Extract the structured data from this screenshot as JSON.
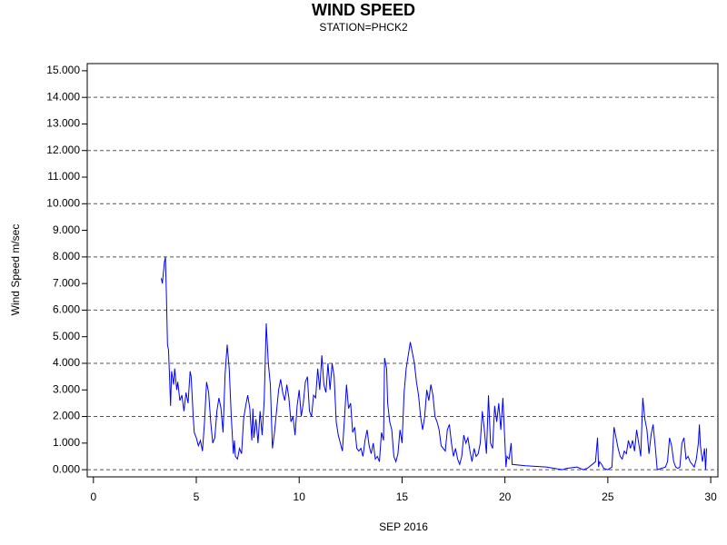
{
  "chart_data": {
    "type": "line",
    "title": "WIND SPEED",
    "subtitle": "STATION=PHCK2",
    "x_label": "SEP 2016",
    "y_label": "Wind Speed m/sec",
    "xlim": [
      -0.3,
      30.35
    ],
    "ylim": [
      -0.27,
      15.27
    ],
    "xticks": [
      0,
      5,
      10,
      15,
      20,
      25,
      30
    ],
    "yticks": [
      {
        "value": 0,
        "label": "0.000"
      },
      {
        "value": 1,
        "label": "1.000"
      },
      {
        "value": 2,
        "label": "2.000"
      },
      {
        "value": 3,
        "label": "3.000"
      },
      {
        "value": 4,
        "label": "4.000"
      },
      {
        "value": 5,
        "label": "5.000"
      },
      {
        "value": 6,
        "label": "6.000"
      },
      {
        "value": 7,
        "label": "7.000"
      },
      {
        "value": 8,
        "label": "8.000"
      },
      {
        "value": 9,
        "label": "9.000"
      },
      {
        "value": 10,
        "label": "10.000"
      },
      {
        "value": 11,
        "label": "11.000"
      },
      {
        "value": 12,
        "label": "12.000"
      },
      {
        "value": 13,
        "label": "13.000"
      },
      {
        "value": 14,
        "label": "14.000"
      },
      {
        "value": 15,
        "label": "15.000"
      }
    ],
    "ygrid": [
      0,
      2,
      4,
      6,
      8,
      10,
      12,
      14
    ],
    "x": [
      3.3,
      3.35,
      3.45,
      3.5,
      3.55,
      3.6,
      3.65,
      3.7,
      3.75,
      3.8,
      3.9,
      3.95,
      4.05,
      4.1,
      4.2,
      4.3,
      4.4,
      4.5,
      4.6,
      4.7,
      4.75,
      4.85,
      4.9,
      5.0,
      5.1,
      5.2,
      5.3,
      5.4,
      5.5,
      5.6,
      5.7,
      5.8,
      5.9,
      6.0,
      6.1,
      6.2,
      6.3,
      6.4,
      6.5,
      6.6,
      6.7,
      6.8,
      6.85,
      6.9,
      7.0,
      7.1,
      7.2,
      7.3,
      7.4,
      7.5,
      7.6,
      7.7,
      7.75,
      7.8,
      7.9,
      8.0,
      8.1,
      8.2,
      8.3,
      8.4,
      8.5,
      8.6,
      8.7,
      8.8,
      8.9,
      9.0,
      9.1,
      9.2,
      9.3,
      9.4,
      9.5,
      9.6,
      9.7,
      9.8,
      9.9,
      10.0,
      10.1,
      10.2,
      10.3,
      10.4,
      10.5,
      10.6,
      10.7,
      10.8,
      10.9,
      11.0,
      11.1,
      11.2,
      11.3,
      11.4,
      11.5,
      11.6,
      11.7,
      11.8,
      11.9,
      12.0,
      12.1,
      12.2,
      12.3,
      12.4,
      12.5,
      12.6,
      12.7,
      12.8,
      12.9,
      13.0,
      13.1,
      13.2,
      13.3,
      13.4,
      13.5,
      13.6,
      13.7,
      13.8,
      13.9,
      14.0,
      14.1,
      14.15,
      14.25,
      14.3,
      14.4,
      14.5,
      14.6,
      14.7,
      14.8,
      14.9,
      15.0,
      15.1,
      15.2,
      15.3,
      15.4,
      15.5,
      15.6,
      15.7,
      15.8,
      15.9,
      16.0,
      16.1,
      16.2,
      16.3,
      16.4,
      16.5,
      16.6,
      16.7,
      16.8,
      16.9,
      17.0,
      17.1,
      17.2,
      17.3,
      17.4,
      17.5,
      17.6,
      17.7,
      17.8,
      17.9,
      18.0,
      18.1,
      18.2,
      18.3,
      18.4,
      18.5,
      18.6,
      18.7,
      18.8,
      18.9,
      19.0,
      19.1,
      19.2,
      19.3,
      19.4,
      19.5,
      19.6,
      19.7,
      19.8,
      19.9,
      20.0,
      20.05,
      20.1,
      20.2,
      20.3,
      20.35,
      21.0,
      22.0,
      22.8,
      23.0,
      23.5,
      23.8,
      24.0,
      24.4,
      24.5,
      24.55,
      24.6,
      24.7,
      24.8,
      25.0,
      25.2,
      25.3,
      25.4,
      25.5,
      25.6,
      25.7,
      25.8,
      25.9,
      26.0,
      26.1,
      26.2,
      26.3,
      26.4,
      26.5,
      26.6,
      26.7,
      26.8,
      26.9,
      27.0,
      27.1,
      27.2,
      27.3,
      27.4,
      27.6,
      27.8,
      27.9,
      28.0,
      28.1,
      28.2,
      28.3,
      28.4,
      28.5,
      28.6,
      28.7,
      28.8,
      28.9,
      29.0,
      29.1,
      29.2,
      29.3,
      29.4,
      29.45,
      29.5,
      29.6,
      29.7,
      29.75,
      29.8
    ],
    "series": [
      {
        "color": "#0000ff",
        "values": [
          7.2,
          7.0,
          7.8,
          8.0,
          6.5,
          4.7,
          4.5,
          3.5,
          2.4,
          3.7,
          3.2,
          3.8,
          3.0,
          3.3,
          2.6,
          2.8,
          2.2,
          2.9,
          2.5,
          3.7,
          3.5,
          2.0,
          1.4,
          1.2,
          0.9,
          1.1,
          0.7,
          1.8,
          3.3,
          2.9,
          1.8,
          1.0,
          1.2,
          2.2,
          2.7,
          2.3,
          1.4,
          3.6,
          4.7,
          3.8,
          2.0,
          0.6,
          1.1,
          0.5,
          0.4,
          0.8,
          0.6,
          1.9,
          2.4,
          2.8,
          2.3,
          1.1,
          2.3,
          1.2,
          1.9,
          1.0,
          2.2,
          1.3,
          2.6,
          5.5,
          4.0,
          3.2,
          0.8,
          1.4,
          2.2,
          3.0,
          3.4,
          2.9,
          2.6,
          3.2,
          2.7,
          1.8,
          2.0,
          1.3,
          2.4,
          3.0,
          2.0,
          2.5,
          3.3,
          3.5,
          2.2,
          2.0,
          2.8,
          2.7,
          3.8,
          3.0,
          4.3,
          3.2,
          2.9,
          4.0,
          3.0,
          4.0,
          3.5,
          1.8,
          1.3,
          1.0,
          0.7,
          1.9,
          3.2,
          2.3,
          2.5,
          1.4,
          1.6,
          0.8,
          0.7,
          0.8,
          0.5,
          1.1,
          1.5,
          0.9,
          0.6,
          1.0,
          0.4,
          0.5,
          0.3,
          1.4,
          1.1,
          4.2,
          3.8,
          2.5,
          1.8,
          1.5,
          0.5,
          0.3,
          0.6,
          1.5,
          1.0,
          2.9,
          3.8,
          4.3,
          4.8,
          4.4,
          4.0,
          3.3,
          2.8,
          2.0,
          1.5,
          2.0,
          3.0,
          2.6,
          3.2,
          2.8,
          2.0,
          1.8,
          1.5,
          0.9,
          0.8,
          0.7,
          1.5,
          1.7,
          1.0,
          0.5,
          0.8,
          0.4,
          0.2,
          0.5,
          1.3,
          1.0,
          1.2,
          0.7,
          0.3,
          0.8,
          0.5,
          0.6,
          1.0,
          2.2,
          1.5,
          0.6,
          2.8,
          1.0,
          0.8,
          2.4,
          1.8,
          2.5,
          1.5,
          2.7,
          1.0,
          0.1,
          0.5,
          0.4,
          1.0,
          0.2,
          0.15,
          0.1,
          0.0,
          0.05,
          0.1,
          0.0,
          0.05,
          0.3,
          1.2,
          0.1,
          0.3,
          0.2,
          0.05,
          0.0,
          0.1,
          1.6,
          1.2,
          0.8,
          0.5,
          0.4,
          0.7,
          0.6,
          1.1,
          0.8,
          1.1,
          0.7,
          1.5,
          1.0,
          0.5,
          2.7,
          1.9,
          1.5,
          0.6,
          1.3,
          1.7,
          0.9,
          0.0,
          0.05,
          0.1,
          0.3,
          1.2,
          0.9,
          0.3,
          0.1,
          0.05,
          0.1,
          1.0,
          1.2,
          0.4,
          0.5,
          0.3,
          0.2,
          0.1,
          0.4,
          1.0,
          1.7,
          0.9,
          0.3,
          0.8,
          0.0,
          0.8
        ]
      }
    ]
  }
}
